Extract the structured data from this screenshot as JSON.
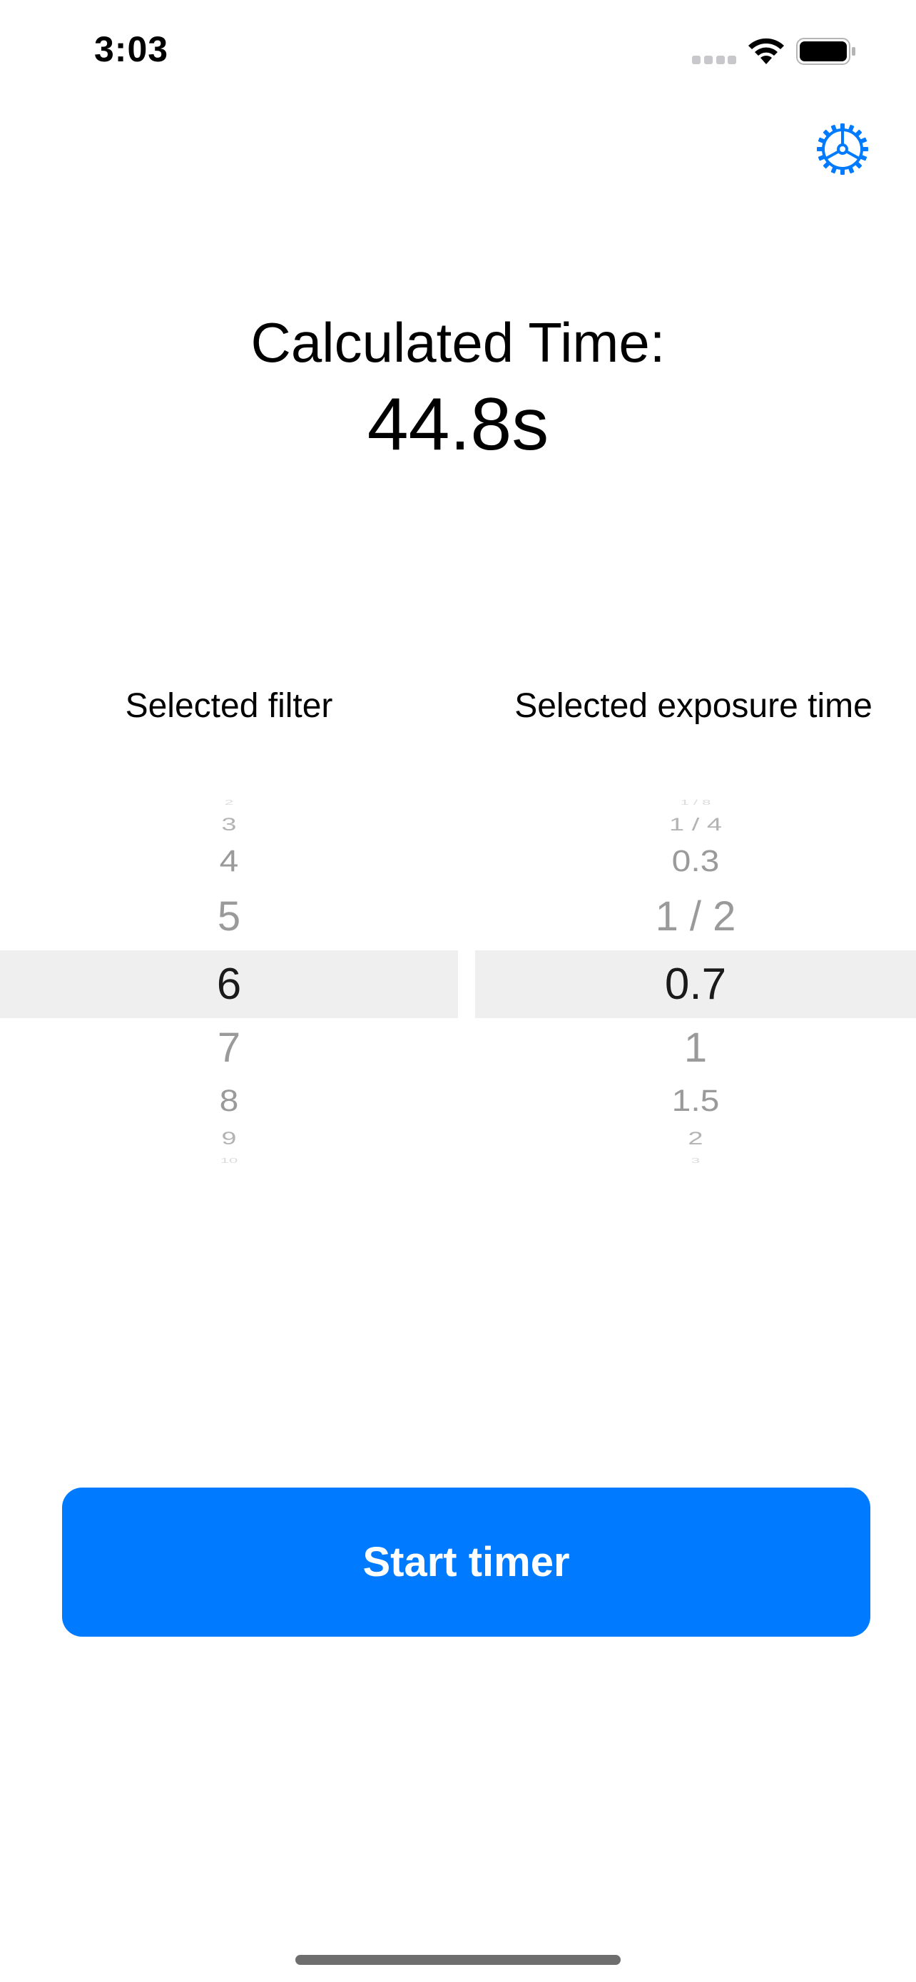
{
  "status_bar": {
    "time": "3:03"
  },
  "icons": {
    "settings": "gear-icon",
    "wifi": "wifi-icon",
    "battery": "battery-icon",
    "signal": "cellular-signal-icon"
  },
  "calculated": {
    "label": "Calculated Time:",
    "value": "44.8s"
  },
  "filter_picker": {
    "header": "Selected filter",
    "items": [
      "2",
      "3",
      "4",
      "5",
      "6",
      "7",
      "8",
      "9",
      "10"
    ],
    "selected": "6"
  },
  "exposure_picker": {
    "header": "Selected exposure time",
    "items": [
      "1 / 8",
      "1 / 4",
      "0.3",
      "1 / 2",
      "0.7",
      "1",
      "1.5",
      "2",
      "3"
    ],
    "selected": "0.7"
  },
  "start_button": {
    "label": "Start timer"
  },
  "colors": {
    "accent": "#007aff",
    "selection_band": "#efefef"
  }
}
